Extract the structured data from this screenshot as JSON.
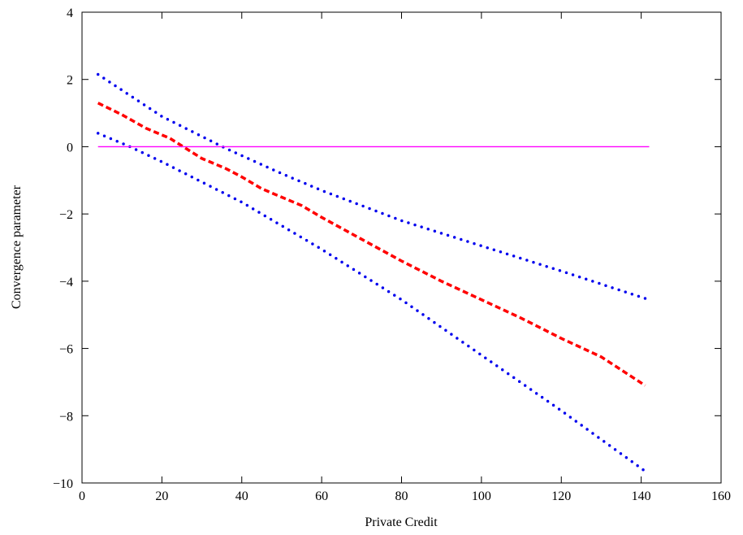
{
  "chart_data": {
    "type": "line",
    "xlabel": "Private Credit",
    "ylabel": "Convergence parameter",
    "xlim": [
      0,
      160
    ],
    "ylim": [
      -10,
      4
    ],
    "xticks": [
      0,
      20,
      40,
      60,
      80,
      100,
      120,
      140,
      160
    ],
    "yticks": [
      4,
      2,
      0,
      -2,
      -4,
      -6,
      -8,
      -10
    ],
    "ytick_labels": [
      "4",
      "2",
      "0",
      "−2",
      "−4",
      "−6",
      "−8",
      "−10"
    ],
    "grid": false,
    "series": [
      {
        "style": "dotted",
        "color": "#0000ee",
        "x": [
          4,
          20,
          36,
          50,
          60,
          80,
          100,
          120,
          142
        ],
        "y": [
          2.15,
          0.9,
          -0.05,
          -0.8,
          -1.3,
          -2.2,
          -2.95,
          -3.7,
          -4.55
        ]
      },
      {
        "style": "dashed",
        "color": "#ff0000",
        "x": [
          4,
          10,
          16,
          22,
          26,
          30,
          36,
          40,
          45,
          50,
          55,
          60,
          70,
          80,
          90,
          100,
          110,
          120,
          130,
          141
        ],
        "y": [
          1.3,
          0.95,
          0.55,
          0.25,
          -0.05,
          -0.35,
          -0.65,
          -0.9,
          -1.25,
          -1.5,
          -1.75,
          -2.1,
          -2.75,
          -3.4,
          -4.0,
          -4.55,
          -5.1,
          -5.7,
          -6.25,
          -7.1
        ]
      },
      {
        "style": "dotted",
        "color": "#0000ee",
        "x": [
          4,
          12,
          20,
          40,
          60,
          80,
          100,
          120,
          141
        ],
        "y": [
          0.4,
          0.0,
          -0.45,
          -1.65,
          -3.05,
          -4.55,
          -6.2,
          -7.85,
          -9.65
        ]
      },
      {
        "style": "solid",
        "color": "#ff00ff",
        "x": [
          4,
          142
        ],
        "y": [
          0,
          0
        ]
      }
    ]
  }
}
